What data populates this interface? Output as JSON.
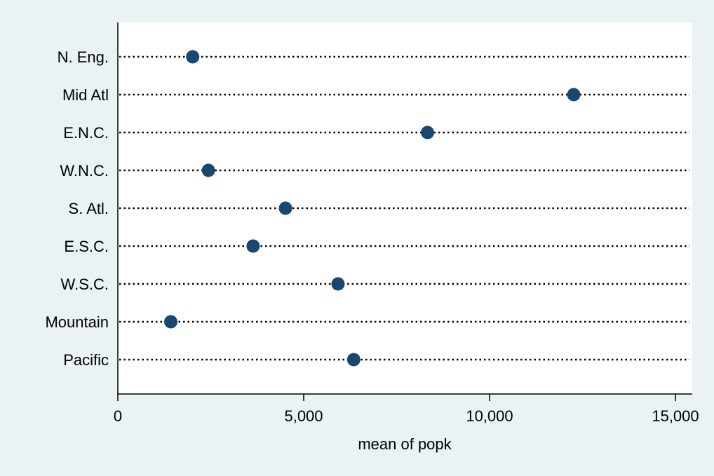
{
  "chart_data": {
    "type": "dot",
    "categories": [
      "N. Eng.",
      "Mid Atl",
      "E.N.C.",
      "W.N.C.",
      "S. Atl.",
      "E.S.C.",
      "W.S.C.",
      "Mountain",
      "Pacific"
    ],
    "values": [
      2014,
      12264,
      8331,
      2437,
      4510,
      3639,
      5924,
      1425,
      6346
    ],
    "xlabel": "mean of popk",
    "ylabel": "",
    "title": "",
    "xlim": [
      0,
      15000
    ],
    "xticks": [
      0,
      5000,
      10000,
      15000
    ],
    "xtick_labels": [
      "0",
      "5,000",
      "10,000",
      "15,000"
    ],
    "grid": false,
    "guide_lines": "dotted",
    "colors": {
      "marker": "#1a476f",
      "background_outer": "#eaf2f3",
      "background_plot": "#ffffff",
      "axis": "#000000"
    }
  }
}
